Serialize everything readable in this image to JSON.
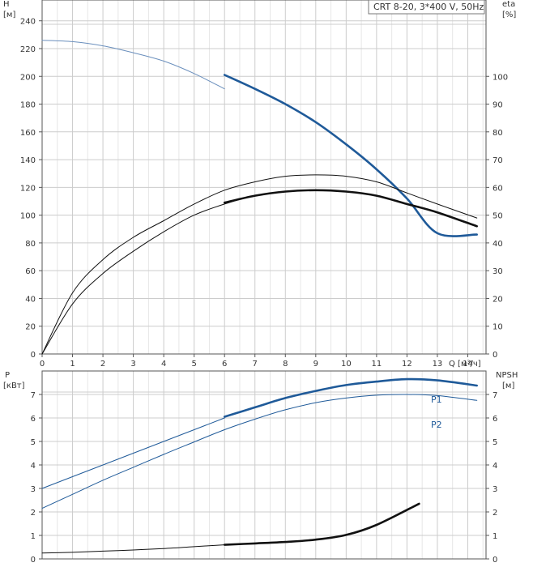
{
  "legend_box": {
    "text": "CRT 8-20, 3*400 V, 50Hz"
  },
  "colors": {
    "blue": "#1f5a99",
    "blue_light": "#6a8fbd",
    "black": "#111111",
    "grid": "#cccccc",
    "axis": "#555555"
  },
  "chart_data": [
    {
      "type": "line",
      "name": "head-efficiency",
      "axes": {
        "x": {
          "label": "Q [м³/ч]",
          "lim": [
            0,
            14.6
          ],
          "ticks": [
            0,
            1,
            2,
            3,
            4,
            5,
            6,
            7,
            8,
            9,
            10,
            11,
            12,
            13,
            14
          ]
        },
        "y_left": {
          "label_line1": "H",
          "label_line2": "[м]",
          "lim": [
            0,
            255
          ],
          "ticks": [
            0,
            20,
            40,
            60,
            80,
            100,
            120,
            140,
            160,
            180,
            200,
            220,
            240
          ]
        },
        "y_right": {
          "label_line1": "eta",
          "label_line2": "[%]",
          "lim": [
            0,
            127.5
          ],
          "ticks": [
            0,
            10,
            20,
            30,
            40,
            50,
            60,
            70,
            80,
            90,
            100
          ]
        }
      },
      "grid": true,
      "series": [
        {
          "axis": "left",
          "x": [
            0,
            1,
            2,
            3,
            4,
            5,
            6
          ],
          "y": [
            226,
            225,
            222,
            217,
            211,
            202,
            191
          ],
          "style": "thin",
          "color": "#6a8fbd"
        },
        {
          "axis": "left",
          "x": [
            6,
            7,
            8,
            9,
            10,
            11,
            12,
            13,
            14.3
          ],
          "y": [
            201,
            191,
            180,
            167,
            151,
            133,
            112,
            87,
            86
          ],
          "style": "thick",
          "color": "#1f5a99"
        },
        {
          "axis": "right",
          "x": [
            0,
            1,
            2,
            3,
            4,
            5,
            6,
            7,
            8,
            9,
            10,
            11,
            12,
            13,
            14.3
          ],
          "y": [
            0,
            22,
            34,
            42,
            48,
            54,
            59,
            62,
            64,
            64.5,
            64,
            62,
            58,
            54,
            49
          ],
          "style": "thin",
          "color": "#111111"
        },
        {
          "axis": "right",
          "x": [
            0,
            1,
            2,
            3,
            4,
            5,
            6,
            7,
            8,
            9,
            10,
            11,
            12,
            13,
            14.3
          ],
          "y": [
            0,
            18,
            29,
            37,
            44,
            50,
            54,
            57,
            58.5,
            59,
            58.5,
            57,
            54,
            51,
            46
          ],
          "style": "thin",
          "color": "#111111"
        },
        {
          "axis": "right",
          "x": [
            6,
            7,
            8,
            9,
            10,
            11,
            12,
            13,
            14.3
          ],
          "y": [
            54.5,
            57,
            58.5,
            59,
            58.5,
            57,
            54,
            51,
            46
          ],
          "style": "thick",
          "color": "#111111"
        }
      ]
    },
    {
      "type": "line",
      "name": "power-npsh",
      "axes": {
        "x": {
          "lim": [
            0,
            14.6
          ]
        },
        "y_left": {
          "label_line1": "P",
          "label_line2": "[кВт]",
          "lim": [
            0,
            8
          ],
          "ticks": [
            0,
            1,
            2,
            3,
            4,
            5,
            6,
            7
          ]
        },
        "y_right": {
          "label_line1": "NPSH",
          "label_line2": "[м]",
          "lim": [
            0,
            8
          ],
          "ticks": [
            0,
            1,
            2,
            3,
            4,
            5,
            6,
            7
          ]
        }
      },
      "grid": true,
      "series": [
        {
          "name": "P1",
          "axis": "left",
          "x": [
            0,
            1,
            2,
            3,
            4,
            5,
            6
          ],
          "y": [
            3.0,
            3.5,
            4.0,
            4.5,
            5.0,
            5.5,
            6.0
          ],
          "style": "thin",
          "color": "#1f5a99"
        },
        {
          "axis": "left",
          "x": [
            6,
            7,
            8,
            9,
            10,
            11,
            12,
            13,
            14.3
          ],
          "y": [
            6.05,
            6.45,
            6.85,
            7.15,
            7.4,
            7.55,
            7.65,
            7.6,
            7.38
          ],
          "style": "thick",
          "color": "#1f5a99"
        },
        {
          "name": "P2",
          "axis": "left",
          "x": [
            0,
            1,
            2,
            3,
            4,
            5,
            6,
            7,
            8,
            9,
            10,
            11,
            12,
            13,
            14.3
          ],
          "y": [
            2.15,
            2.75,
            3.35,
            3.9,
            4.45,
            4.98,
            5.5,
            5.95,
            6.35,
            6.65,
            6.85,
            6.97,
            7.0,
            6.95,
            6.75
          ],
          "style": "thin",
          "color": "#1f5a99"
        },
        {
          "axis": "left",
          "x": [
            0,
            1,
            2,
            3,
            4,
            5,
            6
          ],
          "y": [
            0.25,
            0.28,
            0.33,
            0.38,
            0.44,
            0.52,
            0.6
          ],
          "style": "thin",
          "color": "#111111"
        },
        {
          "axis": "left",
          "x": [
            6,
            7,
            8,
            9,
            10,
            11,
            12.4
          ],
          "y": [
            0.6,
            0.66,
            0.72,
            0.82,
            1.02,
            1.45,
            2.35
          ],
          "style": "thick",
          "color": "#111111"
        }
      ]
    }
  ]
}
